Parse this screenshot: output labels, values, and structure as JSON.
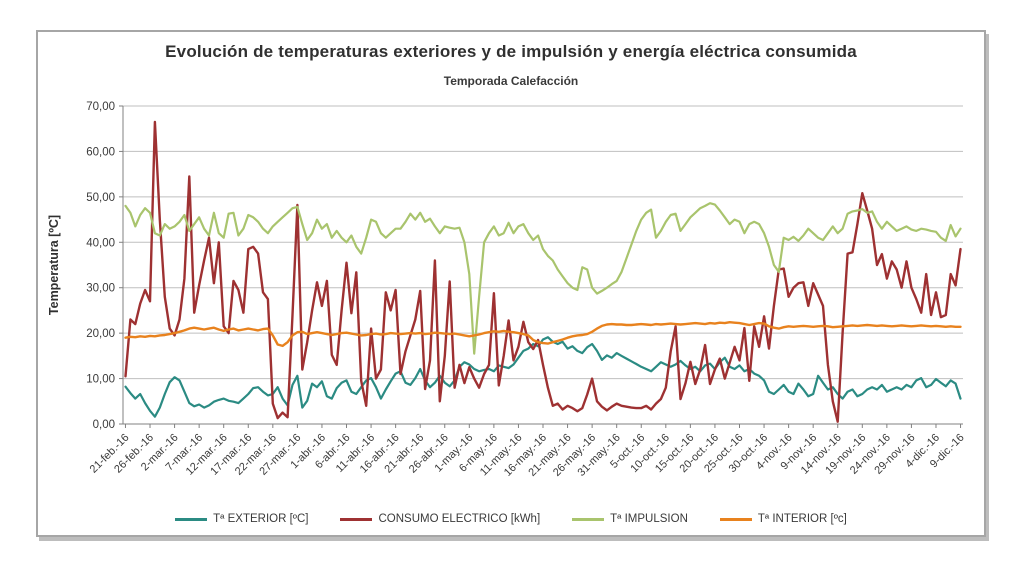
{
  "chart_data": {
    "type": "line",
    "title": "Evolución de temperaturas exteriores y de impulsión y energía eléctrica consumida",
    "subtitle": "Temporada Calefacción",
    "ylabel": "Temperatura [ºC]",
    "ylim": [
      0,
      70
    ],
    "y_tick_step": 10,
    "y_tick_labels": [
      "70,00",
      "60,00",
      "50,00",
      "40,00",
      "30,00",
      "20,00",
      "10,00",
      "0,00"
    ],
    "grid": "horizontal",
    "legend_position": "bottom",
    "x_points_per_tick": 5,
    "x_tick_labels": [
      "21-feb.-16",
      "26-feb.-16",
      "2-mar.-16",
      "7-mar.-16",
      "12-mar.-16",
      "17-mar.-16",
      "22-mar.-16",
      "27-mar.-16",
      "1-abr.-16",
      "6-abr.-16",
      "11-abr.-16",
      "16-abr.-16",
      "21-abr.-16",
      "26-abr.-16",
      "1-may.-16",
      "6-may.-16",
      "11-may.-16",
      "16-may.-16",
      "21-may.-16",
      "26-may.-16",
      "31-may.-16",
      "5-oct.-16",
      "10-oct.-16",
      "15-oct.-16",
      "20-oct.-16",
      "25-oct.-16",
      "30-oct.-16",
      "4-nov.-16",
      "9-nov.-16",
      "14-nov.-16",
      "19-nov.-16",
      "24-nov.-16",
      "29-nov.-16",
      "4-dic.-16",
      "9-dic.-16"
    ],
    "series": [
      {
        "name": "Tª EXTERIOR [ºC]",
        "color": "#2b8b83",
        "width": 2.2,
        "values": [
          8.2,
          6.8,
          5.6,
          6.6,
          4.6,
          2.9,
          1.6,
          3.6,
          6.6,
          9.2,
          10.3,
          9.6,
          7.1,
          4.6,
          3.9,
          4.3,
          3.6,
          4.1,
          4.9,
          5.3,
          5.6,
          5.1,
          4.9,
          4.6,
          5.6,
          6.6,
          7.9,
          8.1,
          7.1,
          6.3,
          6.6,
          8.1,
          5.6,
          4.1,
          8.6,
          10.6,
          3.6,
          5.1,
          8.9,
          8.1,
          9.4,
          6.1,
          5.6,
          7.9,
          9.1,
          9.6,
          7.1,
          6.6,
          8.1,
          9.6,
          10.1,
          8.1,
          5.6,
          7.6,
          9.4,
          11.1,
          11.6,
          9.1,
          8.6,
          10.1,
          12.1,
          9.6,
          8.1,
          9.1,
          10.6,
          9.1,
          8.3,
          9.6,
          12.6,
          13.6,
          13.1,
          12.1,
          11.6,
          11.9,
          12.1,
          11.6,
          12.9,
          12.6,
          12.3,
          13.1,
          14.6,
          16.1,
          16.6,
          17.6,
          17.1,
          18.6,
          19.1,
          18.1,
          17.6,
          18.1,
          16.6,
          17.1,
          16.1,
          15.6,
          16.9,
          17.6,
          16.1,
          14.1,
          15.1,
          14.6,
          15.6,
          15.0,
          14.4,
          13.8,
          13.2,
          12.6,
          12.1,
          11.6,
          12.6,
          13.6,
          13.1,
          12.6,
          13.1,
          13.9,
          12.9,
          12.1,
          12.6,
          11.6,
          12.9,
          13.3,
          12.1,
          13.6,
          14.6,
          12.6,
          12.1,
          12.9,
          11.6,
          12.1,
          11.1,
          10.6,
          9.6,
          7.1,
          6.6,
          7.6,
          8.6,
          7.1,
          6.6,
          8.9,
          7.6,
          6.1,
          6.6,
          10.6,
          9.1,
          7.6,
          8.1,
          6.6,
          5.6,
          7.1,
          7.6,
          6.1,
          6.6,
          7.6,
          8.1,
          7.6,
          8.6,
          7.1,
          7.6,
          8.1,
          7.6,
          8.6,
          8.1,
          9.6,
          10.1,
          8.1,
          8.6,
          9.9,
          9.1,
          8.3,
          9.6,
          8.9,
          5.6
        ]
      },
      {
        "name": "CONSUMO ELECTRICO [kWh]",
        "color": "#9e3132",
        "width": 2.4,
        "values": [
          10.5,
          23.0,
          22.0,
          26.5,
          29.5,
          27.0,
          66.5,
          45.0,
          28.0,
          21.0,
          19.5,
          23.0,
          32.0,
          54.5,
          24.5,
          30.5,
          36.0,
          41.0,
          31.0,
          40.0,
          21.5,
          20.0,
          31.5,
          29.5,
          24.5,
          38.5,
          39.0,
          37.5,
          29.0,
          27.5,
          4.5,
          1.3,
          2.5,
          1.5,
          24.0,
          48.2,
          12.0,
          18.0,
          25.0,
          31.2,
          26.0,
          31.5,
          15.2,
          13.0,
          25.0,
          35.5,
          24.4,
          33.4,
          9.5,
          4.0,
          21.0,
          10.0,
          12.0,
          29.0,
          25.0,
          29.5,
          11.0,
          16.0,
          19.5,
          23.0,
          29.3,
          7.7,
          14.0,
          36.0,
          5.0,
          15.0,
          31.4,
          8.0,
          13.0,
          9.0,
          12.5,
          10.0,
          8.0,
          11.0,
          13.0,
          28.8,
          8.5,
          15.0,
          22.8,
          14.0,
          17.0,
          22.5,
          18.0,
          16.5,
          18.5,
          13.0,
          8.0,
          4.0,
          4.5,
          3.2,
          4.0,
          3.5,
          2.8,
          3.5,
          6.5,
          10.0,
          5.0,
          3.8,
          3.0,
          3.8,
          4.5,
          4.0,
          3.8,
          3.6,
          3.5,
          3.5,
          4.0,
          3.2,
          4.5,
          5.5,
          8.0,
          16.0,
          21.5,
          5.5,
          9.0,
          13.7,
          8.8,
          12.0,
          17.4,
          8.8,
          12.0,
          14.4,
          10.0,
          13.5,
          17.0,
          14.0,
          21.1,
          9.5,
          21.5,
          17.0,
          23.7,
          16.6,
          26.0,
          34.0,
          34.2,
          28.0,
          30.0,
          31.0,
          31.2,
          26.0,
          31.0,
          28.5,
          26.0,
          13.0,
          5.0,
          0.5,
          20.0,
          37.5,
          37.8,
          44.0,
          50.8,
          47.0,
          43.0,
          35.0,
          37.4,
          32.0,
          35.8,
          34.0,
          30.0,
          35.8,
          30.0,
          27.5,
          24.5,
          33.0,
          24.0,
          29.0,
          23.5,
          24.0,
          33.0,
          30.5,
          38.5
        ]
      },
      {
        "name": "Tª IMPULSION",
        "color": "#a9c46d",
        "width": 2.2,
        "values": [
          48.0,
          46.5,
          43.5,
          46.0,
          47.5,
          46.5,
          42.0,
          41.5,
          44.0,
          43.0,
          43.5,
          44.5,
          46.0,
          42.5,
          44.0,
          45.5,
          43.0,
          41.5,
          46.5,
          42.0,
          41.0,
          46.3,
          46.5,
          41.5,
          43.0,
          46.0,
          45.5,
          44.5,
          43.0,
          42.0,
          43.5,
          44.5,
          45.5,
          46.5,
          47.5,
          47.8,
          44.0,
          40.5,
          42.0,
          45.0,
          43.0,
          44.0,
          41.0,
          42.5,
          41.0,
          40.0,
          41.5,
          39.0,
          37.5,
          41.0,
          45.0,
          44.5,
          42.0,
          41.0,
          42.0,
          43.0,
          43.0,
          44.5,
          46.3,
          45.0,
          46.5,
          44.5,
          45.2,
          43.5,
          42.0,
          43.5,
          43.2,
          43.0,
          43.2,
          40.0,
          33.0,
          15.5,
          28.0,
          40.0,
          42.0,
          43.5,
          41.5,
          42.0,
          44.3,
          42.0,
          43.5,
          44.0,
          42.0,
          40.5,
          41.5,
          38.5,
          37.0,
          36.0,
          34.0,
          32.5,
          31.0,
          30.0,
          29.5,
          34.5,
          34.0,
          30.0,
          28.7,
          29.3,
          30.0,
          30.8,
          31.5,
          33.5,
          36.5,
          39.5,
          42.5,
          45.0,
          46.5,
          47.2,
          41.0,
          42.5,
          44.5,
          46.0,
          46.3,
          42.5,
          44.0,
          45.5,
          46.5,
          47.5,
          48.0,
          48.6,
          48.3,
          47.0,
          45.5,
          44.0,
          45.0,
          44.5,
          42.0,
          44.0,
          44.5,
          44.0,
          42.0,
          39.0,
          35.0,
          33.5,
          41.0,
          40.5,
          41.2,
          40.3,
          41.5,
          43.0,
          42.0,
          41.0,
          40.5,
          42.0,
          43.5,
          42.0,
          43.0,
          46.3,
          46.8,
          47.0,
          47.3,
          46.5,
          46.8,
          44.5,
          43.0,
          44.5,
          43.5,
          42.5,
          43.0,
          43.5,
          42.8,
          42.5,
          43.0,
          42.8,
          42.5,
          42.3,
          41.0,
          40.3,
          43.8,
          41.3,
          43.0
        ]
      },
      {
        "name": "Tª INTERIOR [ºc]",
        "color": "#e8821e",
        "width": 2.4,
        "values": [
          19.0,
          19.2,
          19.1,
          19.3,
          19.2,
          19.4,
          19.3,
          19.5,
          19.6,
          19.8,
          20.0,
          20.3,
          20.6,
          21.0,
          21.2,
          21.0,
          20.8,
          21.0,
          21.2,
          20.8,
          20.5,
          20.8,
          21.0,
          20.6,
          20.8,
          21.0,
          20.8,
          20.6,
          20.9,
          21.0,
          19.5,
          17.5,
          17.2,
          18.0,
          19.5,
          20.2,
          20.3,
          19.8,
          20.0,
          20.2,
          20.0,
          19.8,
          19.6,
          19.8,
          20.0,
          20.1,
          19.9,
          19.7,
          19.5,
          19.6,
          19.8,
          19.9,
          19.7,
          19.8,
          20.0,
          19.9,
          19.8,
          19.9,
          20.0,
          19.9,
          20.0,
          19.8,
          19.9,
          20.1,
          20.0,
          19.9,
          19.8,
          19.9,
          19.7,
          19.5,
          19.3,
          19.5,
          19.7,
          20.0,
          20.2,
          20.4,
          20.3,
          20.5,
          20.3,
          20.2,
          20.0,
          19.8,
          19.5,
          18.5,
          18.0,
          17.8,
          17.7,
          18.0,
          18.3,
          18.6,
          19.0,
          19.3,
          19.5,
          19.6,
          19.8,
          20.3,
          21.0,
          21.6,
          21.9,
          22.0,
          21.9,
          21.9,
          21.8,
          21.8,
          21.9,
          22.0,
          21.9,
          21.8,
          22.0,
          21.9,
          22.0,
          22.1,
          22.0,
          21.9,
          22.0,
          22.1,
          22.2,
          22.1,
          22.0,
          22.2,
          22.1,
          22.3,
          22.2,
          22.4,
          22.3,
          22.2,
          22.0,
          21.8,
          22.0,
          22.2,
          22.1,
          21.5,
          21.2,
          21.0,
          21.3,
          21.5,
          21.4,
          21.5,
          21.6,
          21.5,
          21.4,
          21.5,
          21.6,
          21.5,
          21.3,
          21.4,
          21.5,
          21.6,
          21.7,
          21.6,
          21.7,
          21.8,
          21.7,
          21.6,
          21.7,
          21.6,
          21.5,
          21.6,
          21.7,
          21.6,
          21.5,
          21.6,
          21.7,
          21.6,
          21.5,
          21.6,
          21.5,
          21.4,
          21.5,
          21.4,
          21.4
        ]
      }
    ],
    "colors": {
      "grid": "#bfbfbf",
      "axis": "#808080",
      "tick_text": "#3a3a3a",
      "frame_border": "#a6a6a6"
    }
  }
}
